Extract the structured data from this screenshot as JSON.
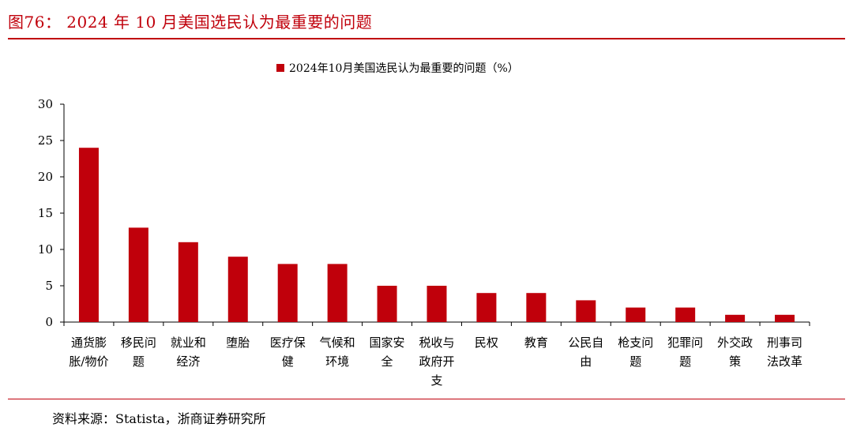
{
  "header": {
    "figure_title": "图76： 2024 年 10 月美国选民认为最重要的问题"
  },
  "footer": {
    "source": "资料来源：Statista，浙商证券研究所"
  },
  "colors": {
    "accent": "#c0000b",
    "bar": "#c0000b",
    "axis": "#000000"
  },
  "chart_data": {
    "type": "bar",
    "categories": [
      [
        "通货膨",
        "胀/物价"
      ],
      [
        "移民问",
        "题"
      ],
      [
        "就业和",
        "经济"
      ],
      [
        "堕胎"
      ],
      [
        "医疗保",
        "健"
      ],
      [
        "气候和",
        "环境"
      ],
      [
        "国家安",
        "全"
      ],
      [
        "税收与",
        "政府开",
        "支"
      ],
      [
        "民权"
      ],
      [
        "教育"
      ],
      [
        "公民自",
        "由"
      ],
      [
        "枪支问",
        "题"
      ],
      [
        "犯罪问",
        "题"
      ],
      [
        "外交政",
        "策"
      ],
      [
        "刑事司",
        "法改革"
      ]
    ],
    "series": [
      {
        "name": "2024年10月美国选民认为最重要的问题（%）",
        "values": [
          24,
          13,
          11,
          9,
          8,
          8,
          5,
          5,
          4,
          4,
          3,
          2,
          2,
          1,
          1
        ]
      }
    ],
    "ylim": [
      0,
      30
    ],
    "yticks": [
      0,
      5,
      10,
      15,
      20,
      25,
      30
    ],
    "grid": false,
    "legend_position": "top-center"
  }
}
